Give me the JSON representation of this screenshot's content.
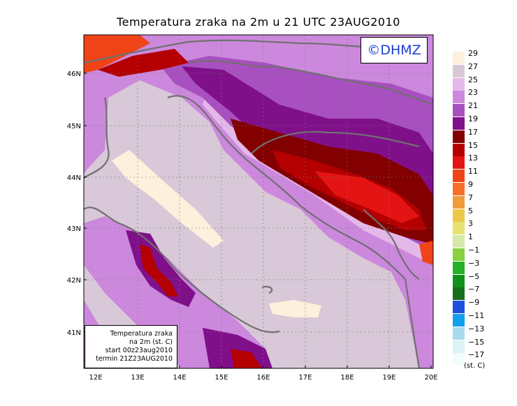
{
  "title": "Temperatura zraka na 2m u 21 UTC 23AUG2010",
  "copyright": "©DHMZ",
  "info_box": {
    "line1": "Temperatura zraka",
    "line2": "na 2m (st. C)",
    "line3": "start 00z23aug2010",
    "line4": "termin 21Z23AUG2010"
  },
  "axes": {
    "x_ticks": [
      "12E",
      "13E",
      "14E",
      "15E",
      "16E",
      "17E",
      "18E",
      "19E",
      "20E"
    ],
    "y_ticks": [
      "46N",
      "45N",
      "44N",
      "43N",
      "42N",
      "41N"
    ]
  },
  "legend": {
    "unit": "(st. C)",
    "labels": [
      "29",
      "27",
      "25",
      "23",
      "21",
      "19",
      "17",
      "15",
      "13",
      "11",
      "9",
      "7",
      "5",
      "3",
      "1",
      "−1",
      "−3",
      "−5",
      "−7",
      "−9",
      "−11",
      "−13",
      "−15",
      "−17"
    ],
    "colors": [
      "#fdf0dc",
      "#d8c8d8",
      "#e4b8e8",
      "#cc88dd",
      "#a850c0",
      "#80108a",
      "#820000",
      "#b40000",
      "#e41414",
      "#f04418",
      "#f87028",
      "#f09c3a",
      "#ecc848",
      "#e8e070",
      "#d6e9a8",
      "#88d040",
      "#28b028",
      "#10901c",
      "#146e1c",
      "#1e50e0",
      "#10a0ee",
      "#a8dcec",
      "#dcf2f6",
      "#f2fcfc"
    ]
  }
}
